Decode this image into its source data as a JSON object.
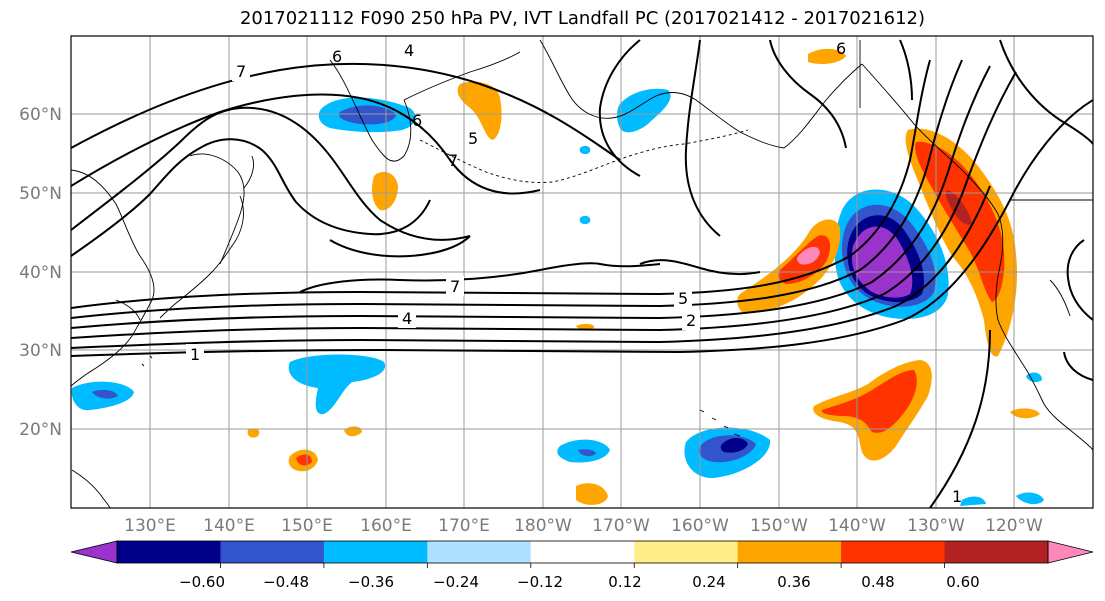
{
  "title": "2017021112 F090 250 hPa PV, IVT Landfall PC (2017021412 - 2017021612)",
  "map": {
    "latitude_labels": [
      "60°N",
      "50°N",
      "40°N",
      "30°N",
      "20°N"
    ],
    "longitude_labels": [
      "130°E",
      "140°E",
      "150°E",
      "160°E",
      "170°E",
      "180°W",
      "170°W",
      "160°W",
      "150°W",
      "140°W",
      "130°W",
      "120°W"
    ],
    "contour_labels": [
      "7",
      "6",
      "4",
      "6",
      "5",
      "7",
      "6",
      "7",
      "5",
      "4",
      "2",
      "1",
      "1"
    ]
  },
  "colorbar": {
    "tick_labels": [
      "−0.60",
      "−0.48",
      "−0.36",
      "−0.24",
      "−0.12",
      "0.12",
      "0.24",
      "0.36",
      "0.48",
      "0.60"
    ],
    "colors": [
      "#9933cc",
      "#000088",
      "#3355cc",
      "#00bbff",
      "#b0e0ff",
      "#ffffff",
      "#ffee88",
      "#ffa500",
      "#ff3300",
      "#b22222",
      "#ff88bb"
    ]
  }
}
